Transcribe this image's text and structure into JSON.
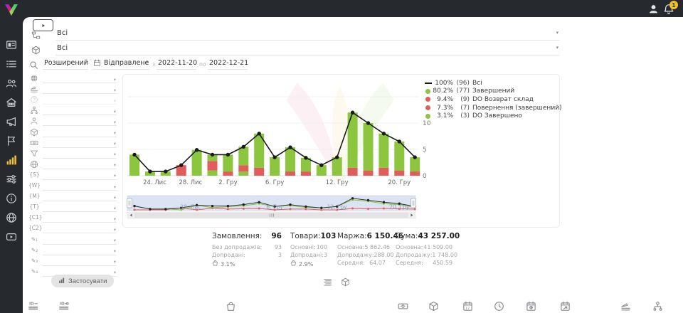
{
  "header": {
    "avatar_icon": "avatar-icon",
    "bell_icon": "bell-icon",
    "notification_badge": "1"
  },
  "sidebar": {
    "active_index": 6,
    "items": [
      {
        "name": "nav-dashboard",
        "icon": "dashboard-icon"
      },
      {
        "name": "nav-orders",
        "icon": "orders-icon"
      },
      {
        "name": "nav-clients",
        "icon": "clients-icon"
      },
      {
        "name": "nav-warehouse",
        "icon": "warehouse-icon"
      },
      {
        "name": "nav-marketing",
        "icon": "megaphone-icon"
      },
      {
        "name": "nav-campaigns",
        "icon": "flag-icon"
      },
      {
        "name": "nav-analytics",
        "icon": "analytics-icon"
      },
      {
        "name": "nav-settings",
        "icon": "sliders-icon"
      },
      {
        "name": "nav-info",
        "icon": "info-icon"
      },
      {
        "name": "nav-integrations",
        "icon": "globe-icon"
      },
      {
        "name": "nav-tutorials",
        "icon": "video-icon"
      }
    ]
  },
  "topbar": {
    "video_button_icon": "play-icon",
    "status_filter": {
      "icon": "sitemap-icon",
      "value": "Всі"
    },
    "product_filter": {
      "icon": "package-icon",
      "value": "Всі"
    },
    "search": {
      "icon": "search-icon",
      "mode_value": "Розширений",
      "date_field_icon": "calendar-icon",
      "date_field_value": "Відправлене",
      "from_label": "з",
      "date_from": "2022-11-20",
      "to_label": "по",
      "date_to": "2022-12-21"
    }
  },
  "filter_panel": {
    "rows": [
      {
        "name": "filter-country",
        "icon": "globe-solid-icon"
      },
      {
        "name": "filter-source",
        "icon": "ramp-icon"
      },
      {
        "name": "filter-unknown",
        "icon": "help-icon",
        "disabled": true
      },
      {
        "name": "filter-structure",
        "icon": "hierarchy-icon"
      },
      {
        "name": "filter-manager",
        "icon": "person-icon"
      },
      {
        "name": "filter-product",
        "icon": "package-icon"
      },
      {
        "name": "filter-payment",
        "icon": "banknote-icon"
      },
      {
        "name": "filter-funnel",
        "icon": "funnel-icon"
      },
      {
        "name": "filter-site",
        "icon": "globe-icon"
      },
      {
        "name": "filter-utm-s",
        "glyph": "{S}"
      },
      {
        "name": "filter-utm-w",
        "glyph": "{W}"
      },
      {
        "name": "filter-utm-m",
        "glyph": "{M}"
      },
      {
        "name": "filter-utm-t",
        "glyph": "{T}"
      },
      {
        "name": "filter-utm-c1",
        "glyph": "{C1}"
      },
      {
        "name": "filter-utm-c2",
        "glyph": "{C2}"
      },
      {
        "name": "filter-custom-1",
        "glyph": "✎₁"
      },
      {
        "name": "filter-custom-2",
        "glyph": "✎₂"
      },
      {
        "name": "filter-custom-3",
        "glyph": "✎₃"
      },
      {
        "name": "filter-custom-4",
        "glyph": "✎₄"
      }
    ],
    "apply_button": {
      "icon": "chart-mini-icon",
      "label": "Застосувати"
    }
  },
  "chart_data": {
    "type": "bar",
    "subtype": "stacked-bars-by-status-with-total-line",
    "x_ticks": [
      {
        "label": "24. Лис",
        "i": 1.3
      },
      {
        "label": "28. Лис",
        "i": 3.6
      },
      {
        "label": "2. Гру",
        "i": 6
      },
      {
        "label": "6. Гру",
        "i": 9
      },
      {
        "label": "12. Гру",
        "i": 13
      },
      {
        "label": "20. Гру",
        "i": 17
      }
    ],
    "y_ticks": [
      0,
      5,
      10
    ],
    "ylim": [
      0,
      15
    ],
    "legend": [
      {
        "marker": "line",
        "color": "#1a1a1a",
        "percent": "100%",
        "count": "(96)",
        "label": "Всі"
      },
      {
        "marker": "dot",
        "color": "#8cc63e",
        "percent": "80.2%",
        "count": "(77)",
        "label": "Завершений"
      },
      {
        "marker": "dot",
        "color": "#e25c5c",
        "percent": "9.4%",
        "count": "(9)",
        "label": "DO Возврат склад"
      },
      {
        "marker": "dot",
        "color": "#e25c5c",
        "percent": "7.3%",
        "count": "(7)",
        "label": "Повернення (завершений)"
      },
      {
        "marker": "dot",
        "color": "#8cc63e",
        "percent": "3.1%",
        "count": "(3)",
        "label": "DO Завершено"
      }
    ],
    "series_colors": {
      "green": "#8cc63e",
      "red": "#e25c5c",
      "line": "#1a1a1a"
    },
    "bars": [
      {
        "segments": [
          [
            "green",
            4
          ]
        ]
      },
      {
        "segments": [
          [
            "green",
            0.8
          ]
        ]
      },
      {
        "segments": [
          [
            "green",
            0.8
          ]
        ]
      },
      {
        "segments": [
          [
            "red",
            2
          ]
        ]
      },
      {
        "segments": [
          [
            "green",
            4.9
          ]
        ]
      },
      {
        "segments": [
          [
            "green",
            1
          ],
          [
            "red",
            1.8
          ],
          [
            "green",
            1.2
          ]
        ]
      },
      {
        "segments": [
          [
            "red",
            0.8
          ],
          [
            "green",
            3.2
          ]
        ]
      },
      {
        "segments": [
          [
            "green",
            0.8
          ],
          [
            "red",
            1.2
          ],
          [
            "green",
            3.5
          ]
        ]
      },
      {
        "segments": [
          [
            "red",
            1.5
          ],
          [
            "green",
            6.5
          ]
        ]
      },
      {
        "segments": [
          [
            "green",
            3.5
          ]
        ]
      },
      {
        "segments": [
          [
            "red",
            0.8
          ],
          [
            "green",
            4.6
          ]
        ]
      },
      {
        "segments": [
          [
            "red",
            0.8
          ],
          [
            "green",
            2.6
          ]
        ]
      },
      {
        "segments": [
          [
            "green",
            2
          ]
        ]
      },
      {
        "segments": [
          [
            "green",
            3.5
          ]
        ]
      },
      {
        "segments": [
          [
            "red",
            1.5
          ],
          [
            "green",
            10.5
          ]
        ]
      },
      {
        "segments": [
          [
            "red",
            1
          ],
          [
            "green",
            9
          ]
        ]
      },
      {
        "segments": [
          [
            "red",
            1.5
          ],
          [
            "green",
            6.5
          ]
        ]
      },
      {
        "segments": [
          [
            "red",
            1
          ],
          [
            "green",
            5.5
          ]
        ]
      },
      {
        "segments": [
          [
            "red",
            0.8
          ],
          [
            "green",
            2.7
          ]
        ]
      }
    ],
    "totals": [
      4,
      0.8,
      0.8,
      2,
      4.9,
      4,
      4,
      5.5,
      8,
      3.5,
      5.4,
      3.4,
      2,
      3.5,
      12,
      10,
      8,
      6.5,
      3.5
    ],
    "navigator": {
      "labels": [
        {
          "label": "28. Лис",
          "i": 3.6
        },
        {
          "label": "6. Гру",
          "i": 9
        },
        {
          "label": "12. Гру",
          "i": 13
        },
        {
          "label": "20. Гру",
          "i": 17
        }
      ]
    }
  },
  "stats": {
    "columns": [
      {
        "title": "Замовлення:",
        "value": "96",
        "rows": [
          {
            "label": "Без допродажів:",
            "value": "93"
          },
          {
            "label": "Допродані:",
            "value": "3"
          }
        ],
        "percent": {
          "icon": "bag-icon",
          "value": "3.1%"
        }
      },
      {
        "title": "Товари:",
        "value": "103",
        "rows": [
          {
            "label": "Основні:",
            "value": "100"
          },
          {
            "label": "Допродані:",
            "value": "3"
          }
        ],
        "percent": {
          "icon": "bag-icon",
          "value": "2.9%"
        }
      },
      {
        "title": "Маржа:",
        "value": "6 150.46",
        "rows": [
          {
            "label": "Основна:",
            "value": "5 862.46"
          },
          {
            "label": "Допродажу:",
            "value": "288.00"
          },
          {
            "label": "Середня:",
            "value": "64.07"
          }
        ]
      },
      {
        "title": "Сума:",
        "value": "43 257.00",
        "rows": [
          {
            "label": "Основна:",
            "value": "41 509.00"
          },
          {
            "label": "Допродажу:",
            "value": "1 748.00"
          },
          {
            "label": "Середня:",
            "value": "450.59"
          }
        ]
      }
    ]
  },
  "view_toggle": [
    {
      "name": "view-list",
      "icon": "list-view-icon"
    },
    {
      "name": "view-products",
      "icon": "package-icon"
    }
  ],
  "footer": {
    "items": [
      {
        "name": "tool-id-list",
        "icon": "id-lines-icon"
      },
      {
        "name": "tool-id-link",
        "icon": "id-dash-icon"
      },
      {
        "name": "tool-bag",
        "icon": "bag-icon"
      },
      {
        "name": "tool-money",
        "icon": "banknote-icon"
      },
      {
        "name": "tool-products",
        "icon": "package-icon"
      },
      {
        "name": "tool-calendar-date",
        "icon": "calendar-17-icon"
      },
      {
        "name": "tool-time",
        "icon": "clock-icon"
      },
      {
        "name": "tool-calendar-clock",
        "icon": "calendar-dot-icon"
      },
      {
        "name": "tool-calendar-export",
        "icon": "calendar-arrow-icon"
      },
      {
        "name": "tool-source",
        "icon": "ramp-icon"
      },
      {
        "name": "tool-structure",
        "icon": "hierarchy-icon"
      }
    ]
  },
  "colors": {
    "accent_yellow": "#f0c12b",
    "bar_green": "#8cc63e",
    "bar_red": "#e25c5c",
    "line_black": "#1a1a1a",
    "nav_bg": "#dce3f2",
    "rail_bg": "#26292e"
  }
}
